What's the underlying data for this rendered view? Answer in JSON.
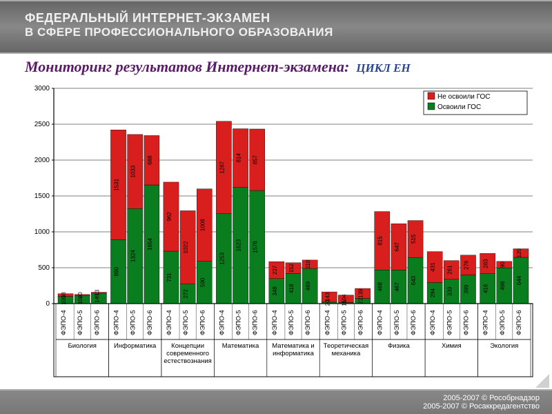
{
  "header": {
    "line1": "ФЕДЕРАЛЬНЫЙ ИНТЕРНЕТ-ЭКЗАМЕН",
    "line2": "В СФЕРЕ ПРОФЕССИОНАЛЬНОГО ОБРАЗОВАНИЯ"
  },
  "title": {
    "main": "Мониторинг результатов Интернет-экзамена:",
    "sub": "ЦИКЛ ЕН"
  },
  "footer": {
    "line1": "2005-2007 © Рособрнадзор",
    "line2": "2005-2007 © Росаккредагентство"
  },
  "chart": {
    "type": "stacked-bar",
    "ymin": 0,
    "ymax": 3000,
    "ytick_step": 500,
    "background": "#ffffff",
    "grid_color": "#000000",
    "axis_color": "#000000",
    "legend": {
      "position": "top-right",
      "border": "#000000",
      "items": [
        {
          "label": "Не освоили ГОС",
          "color": "#d91e1e"
        },
        {
          "label": "Освоили ГОС",
          "color": "#0a7d1e"
        }
      ]
    },
    "colors": {
      "mastered": "#0a7d1e",
      "not_mastered": "#d91e1e"
    },
    "bar_labels": [
      "ФЭПО-4",
      "ФЭПО-5",
      "ФЭПО-6"
    ],
    "tick_font_size": 10,
    "axis_label_font_size": 10,
    "value_label_font_size": 8,
    "groups": [
      {
        "name": "Биология",
        "bars": [
          {
            "mastered": 100,
            "not_mastered": 38
          },
          {
            "mastered": 108,
            "not_mastered": 20
          },
          {
            "mastered": 145,
            "not_mastered": 13
          }
        ]
      },
      {
        "name": "Информатика",
        "bars": [
          {
            "mastered": 890,
            "not_mastered": 1531
          },
          {
            "mastered": 1324,
            "not_mastered": 1033
          },
          {
            "mastered": 1654,
            "not_mastered": 688
          }
        ]
      },
      {
        "name": "Концепции современного естествознания",
        "bars": [
          {
            "mastered": 731,
            "not_mastered": 962
          },
          {
            "mastered": 272,
            "not_mastered": 1022
          },
          {
            "mastered": 590,
            "not_mastered": 1008
          }
        ]
      },
      {
        "name": "Математика",
        "bars": [
          {
            "mastered": 1253,
            "not_mastered": 1287
          },
          {
            "mastered": 1623,
            "not_mastered": 814
          },
          {
            "mastered": 1576,
            "not_mastered": 857
          }
        ]
      },
      {
        "name": "Математика и информатика",
        "bars": [
          {
            "mastered": 348,
            "not_mastered": 237
          },
          {
            "mastered": 418,
            "not_mastered": 152
          },
          {
            "mastered": 489,
            "not_mastered": 118
          }
        ]
      },
      {
        "name": "Теоретическая механика",
        "bars": [
          {
            "mastered": 20,
            "not_mastered": 143
          },
          {
            "mastered": 15,
            "not_mastered": 104
          },
          {
            "mastered": 72,
            "not_mastered": 139
          }
        ]
      },
      {
        "name": "Физика",
        "bars": [
          {
            "mastered": 468,
            "not_mastered": 815
          },
          {
            "mastered": 467,
            "not_mastered": 647
          },
          {
            "mastered": 643,
            "not_mastered": 515
          }
        ]
      },
      {
        "name": "Химия",
        "bars": [
          {
            "mastered": 294,
            "not_mastered": 431
          },
          {
            "mastered": 339,
            "not_mastered": 261
          },
          {
            "mastered": 399,
            "not_mastered": 276
          }
        ]
      },
      {
        "name": "Экология",
        "bars": [
          {
            "mastered": 416,
            "not_mastered": 283
          },
          {
            "mastered": 498,
            "not_mastered": 90
          },
          {
            "mastered": 644,
            "not_mastered": 120
          }
        ]
      }
    ]
  }
}
